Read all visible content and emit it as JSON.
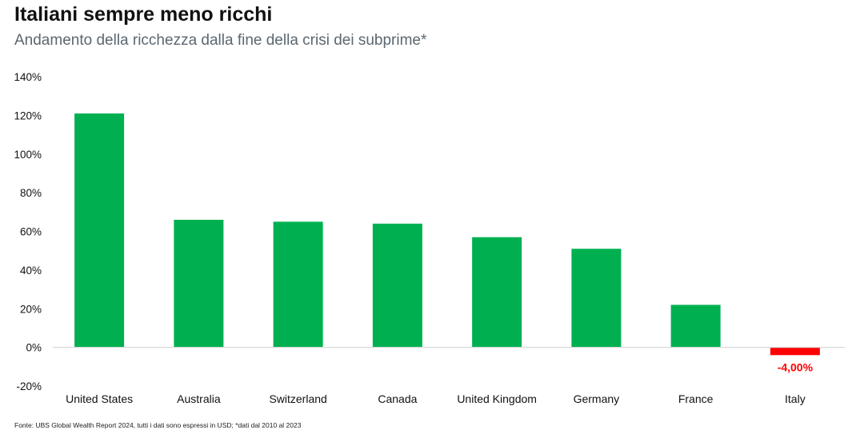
{
  "title": "Italiani sempre meno ricchi",
  "subtitle": "Andamento della ricchezza dalla fine della crisi dei subprime*",
  "source": "Fonte: UBS Global Wealth Report 2024, tutti i dati sono espressi in USD; *dati dal 2010 al 2023",
  "colors": {
    "positive": "#00b050",
    "negative": "#ff0000",
    "axis": "#d9d9d9"
  },
  "chart_data": {
    "type": "bar",
    "title": "Italiani sempre meno ricchi",
    "subtitle": "Andamento della ricchezza dalla fine della crisi dei subprime*",
    "xlabel": "",
    "ylabel": "",
    "categories": [
      "United States",
      "Australia",
      "Switzerland",
      "Canada",
      "United Kingdom",
      "Germany",
      "France",
      "Italy"
    ],
    "values": [
      121,
      66,
      65,
      64,
      57,
      51,
      22,
      -4
    ],
    "ylim": [
      -20,
      140
    ],
    "yticks": [
      -20,
      0,
      20,
      40,
      60,
      80,
      100,
      120,
      140
    ],
    "ytick_labels": [
      "-20%",
      "0%",
      "20%",
      "40%",
      "60%",
      "80%",
      "100%",
      "120%",
      "140%"
    ],
    "grid": false,
    "legend": "none",
    "annotations": [
      {
        "category": "Italy",
        "text": "-4,00%"
      }
    ]
  }
}
